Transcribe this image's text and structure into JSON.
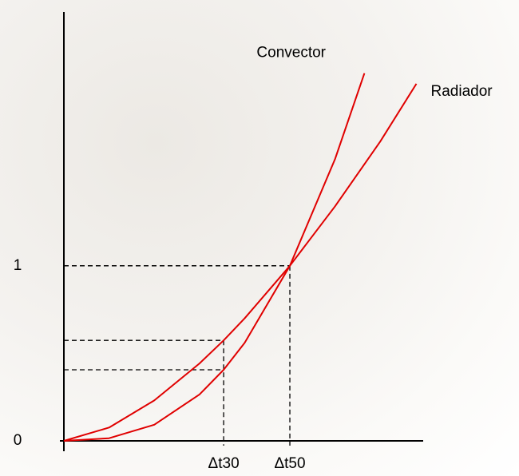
{
  "chart_data": {
    "type": "line",
    "series": [
      {
        "name": "Convector",
        "color": "#e00000",
        "x": [
          0,
          0.2,
          0.4,
          0.6,
          0.707,
          0.8,
          1,
          1.2,
          1.33
        ],
        "values": [
          0,
          0.015,
          0.092,
          0.265,
          0.406,
          0.56,
          1,
          1.61,
          2.1
        ]
      },
      {
        "name": "Radiador",
        "color": "#e00000",
        "x": [
          0,
          0.2,
          0.4,
          0.6,
          0.707,
          0.8,
          1,
          1.2,
          1.4,
          1.56
        ],
        "values": [
          0,
          0.076,
          0.231,
          0.442,
          0.574,
          0.7,
          1,
          1.34,
          1.71,
          2.04
        ]
      }
    ],
    "xlim": [
      0,
      1.59
    ],
    "ylim": [
      0,
      2.45
    ],
    "xticks": [
      {
        "value": 0.707,
        "label": "Δt30"
      },
      {
        "value": 1,
        "label": "Δt50"
      }
    ],
    "yticks": [
      0,
      1
    ],
    "grid": false
  }
}
